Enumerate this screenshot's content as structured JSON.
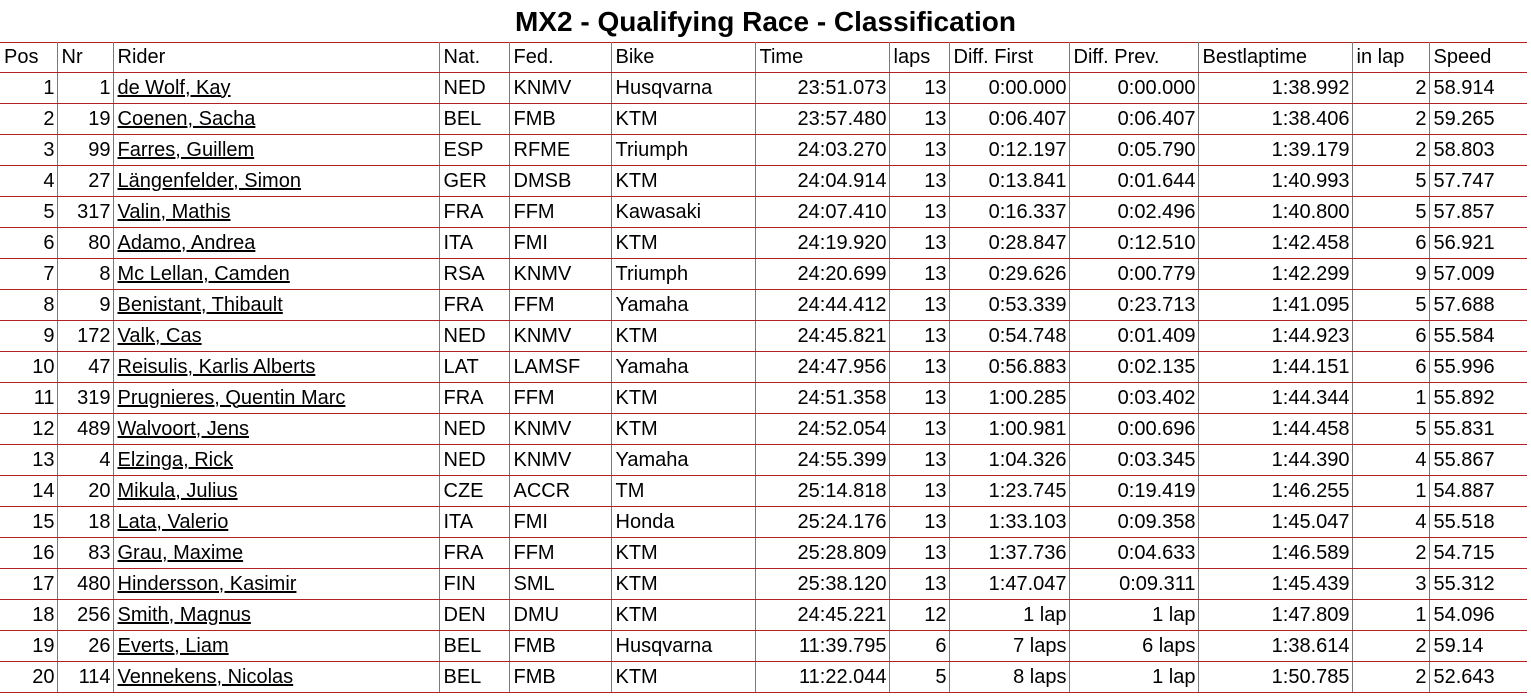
{
  "title": "MX2 - Qualifying Race - Classification",
  "columns": [
    "Pos",
    "Nr",
    "Rider",
    "Nat.",
    "Fed.",
    "Bike",
    "Time",
    "laps",
    "Diff. First",
    "Diff. Prev.",
    "Bestlaptime",
    "in lap",
    "Speed"
  ],
  "rows": [
    {
      "pos": "1",
      "nr": "1",
      "rider": "de Wolf, Kay",
      "nat": "NED",
      "fed": "KNMV",
      "bike": "Husqvarna",
      "time": "23:51.073",
      "laps": "13",
      "diff_first": "0:00.000",
      "diff_prev": "0:00.000",
      "bestlap": "1:38.992",
      "in_lap": "2",
      "speed": "58.914"
    },
    {
      "pos": "2",
      "nr": "19",
      "rider": "Coenen, Sacha",
      "nat": "BEL",
      "fed": "FMB",
      "bike": "KTM",
      "time": "23:57.480",
      "laps": "13",
      "diff_first": "0:06.407",
      "diff_prev": "0:06.407",
      "bestlap": "1:38.406",
      "in_lap": "2",
      "speed": "59.265"
    },
    {
      "pos": "3",
      "nr": "99",
      "rider": "Farres, Guillem",
      "nat": "ESP",
      "fed": "RFME",
      "bike": "Triumph",
      "time": "24:03.270",
      "laps": "13",
      "diff_first": "0:12.197",
      "diff_prev": "0:05.790",
      "bestlap": "1:39.179",
      "in_lap": "2",
      "speed": "58.803"
    },
    {
      "pos": "4",
      "nr": "27",
      "rider": "Längenfelder, Simon",
      "nat": "GER",
      "fed": "DMSB",
      "bike": "KTM",
      "time": "24:04.914",
      "laps": "13",
      "diff_first": "0:13.841",
      "diff_prev": "0:01.644",
      "bestlap": "1:40.993",
      "in_lap": "5",
      "speed": "57.747"
    },
    {
      "pos": "5",
      "nr": "317",
      "rider": "Valin, Mathis",
      "nat": "FRA",
      "fed": "FFM",
      "bike": "Kawasaki",
      "time": "24:07.410",
      "laps": "13",
      "diff_first": "0:16.337",
      "diff_prev": "0:02.496",
      "bestlap": "1:40.800",
      "in_lap": "5",
      "speed": "57.857"
    },
    {
      "pos": "6",
      "nr": "80",
      "rider": "Adamo, Andrea",
      "nat": "ITA",
      "fed": "FMI",
      "bike": "KTM",
      "time": "24:19.920",
      "laps": "13",
      "diff_first": "0:28.847",
      "diff_prev": "0:12.510",
      "bestlap": "1:42.458",
      "in_lap": "6",
      "speed": "56.921"
    },
    {
      "pos": "7",
      "nr": "8",
      "rider": "Mc Lellan, Camden",
      "nat": "RSA",
      "fed": "KNMV",
      "bike": "Triumph",
      "time": "24:20.699",
      "laps": "13",
      "diff_first": "0:29.626",
      "diff_prev": "0:00.779",
      "bestlap": "1:42.299",
      "in_lap": "9",
      "speed": "57.009"
    },
    {
      "pos": "8",
      "nr": "9",
      "rider": "Benistant, Thibault",
      "nat": "FRA",
      "fed": "FFM",
      "bike": "Yamaha",
      "time": "24:44.412",
      "laps": "13",
      "diff_first": "0:53.339",
      "diff_prev": "0:23.713",
      "bestlap": "1:41.095",
      "in_lap": "5",
      "speed": "57.688"
    },
    {
      "pos": "9",
      "nr": "172",
      "rider": "Valk, Cas",
      "nat": "NED",
      "fed": "KNMV",
      "bike": "KTM",
      "time": "24:45.821",
      "laps": "13",
      "diff_first": "0:54.748",
      "diff_prev": "0:01.409",
      "bestlap": "1:44.923",
      "in_lap": "6",
      "speed": "55.584"
    },
    {
      "pos": "10",
      "nr": "47",
      "rider": "Reisulis, Karlis Alberts",
      "nat": "LAT",
      "fed": "LAMSF",
      "bike": "Yamaha",
      "time": "24:47.956",
      "laps": "13",
      "diff_first": "0:56.883",
      "diff_prev": "0:02.135",
      "bestlap": "1:44.151",
      "in_lap": "6",
      "speed": "55.996"
    },
    {
      "pos": "11",
      "nr": "319",
      "rider": "Prugnieres, Quentin Marc",
      "nat": "FRA",
      "fed": "FFM",
      "bike": "KTM",
      "time": "24:51.358",
      "laps": "13",
      "diff_first": "1:00.285",
      "diff_prev": "0:03.402",
      "bestlap": "1:44.344",
      "in_lap": "1",
      "speed": "55.892"
    },
    {
      "pos": "12",
      "nr": "489",
      "rider": "Walvoort, Jens",
      "nat": "NED",
      "fed": "KNMV",
      "bike": "KTM",
      "time": "24:52.054",
      "laps": "13",
      "diff_first": "1:00.981",
      "diff_prev": "0:00.696",
      "bestlap": "1:44.458",
      "in_lap": "5",
      "speed": "55.831"
    },
    {
      "pos": "13",
      "nr": "4",
      "rider": "Elzinga, Rick",
      "nat": "NED",
      "fed": "KNMV",
      "bike": "Yamaha",
      "time": "24:55.399",
      "laps": "13",
      "diff_first": "1:04.326",
      "diff_prev": "0:03.345",
      "bestlap": "1:44.390",
      "in_lap": "4",
      "speed": "55.867"
    },
    {
      "pos": "14",
      "nr": "20",
      "rider": "Mikula, Julius",
      "nat": "CZE",
      "fed": "ACCR",
      "bike": "TM",
      "time": "25:14.818",
      "laps": "13",
      "diff_first": "1:23.745",
      "diff_prev": "0:19.419",
      "bestlap": "1:46.255",
      "in_lap": "1",
      "speed": "54.887"
    },
    {
      "pos": "15",
      "nr": "18",
      "rider": "Lata, Valerio",
      "nat": "ITA",
      "fed": "FMI",
      "bike": "Honda",
      "time": "25:24.176",
      "laps": "13",
      "diff_first": "1:33.103",
      "diff_prev": "0:09.358",
      "bestlap": "1:45.047",
      "in_lap": "4",
      "speed": "55.518"
    },
    {
      "pos": "16",
      "nr": "83",
      "rider": "Grau, Maxime",
      "nat": "FRA",
      "fed": "FFM",
      "bike": "KTM",
      "time": "25:28.809",
      "laps": "13",
      "diff_first": "1:37.736",
      "diff_prev": "0:04.633",
      "bestlap": "1:46.589",
      "in_lap": "2",
      "speed": "54.715"
    },
    {
      "pos": "17",
      "nr": "480",
      "rider": "Hindersson, Kasimir",
      "nat": "FIN",
      "fed": "SML",
      "bike": "KTM",
      "time": "25:38.120",
      "laps": "13",
      "diff_first": "1:47.047",
      "diff_prev": "0:09.311",
      "bestlap": "1:45.439",
      "in_lap": "3",
      "speed": "55.312"
    },
    {
      "pos": "18",
      "nr": "256",
      "rider": "Smith, Magnus",
      "nat": "DEN",
      "fed": "DMU",
      "bike": "KTM",
      "time": "24:45.221",
      "laps": "12",
      "diff_first": "1 lap",
      "diff_prev": "1 lap",
      "bestlap": "1:47.809",
      "in_lap": "1",
      "speed": "54.096"
    },
    {
      "pos": "19",
      "nr": "26",
      "rider": "Everts, Liam",
      "nat": "BEL",
      "fed": "FMB",
      "bike": "Husqvarna",
      "time": "11:39.795",
      "laps": "6",
      "diff_first": "7 laps",
      "diff_prev": "6 laps",
      "bestlap": "1:38.614",
      "in_lap": "2",
      "speed": "59.14"
    },
    {
      "pos": "20",
      "nr": "114",
      "rider": "Vennekens, Nicolas",
      "nat": "BEL",
      "fed": "FMB",
      "bike": "KTM",
      "time": "11:22.044",
      "laps": "5",
      "diff_first": "8 laps",
      "diff_prev": "1 lap",
      "bestlap": "1:50.785",
      "in_lap": "2",
      "speed": "52.643"
    }
  ]
}
